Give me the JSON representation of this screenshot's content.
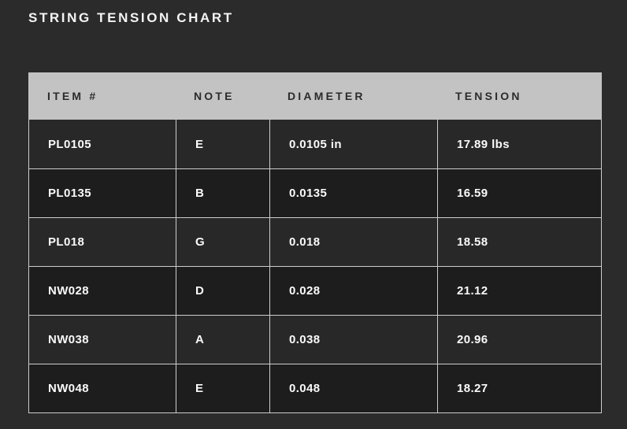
{
  "page": {
    "background": "#2b2b2b"
  },
  "chart_data": {
    "type": "table",
    "title": "STRING TENSION CHART",
    "columns": [
      "ITEM #",
      "NOTE",
      "DIAMETER",
      "TENSION"
    ],
    "rows": [
      [
        "PL0105",
        "E",
        "0.0105 in",
        "17.89 lbs"
      ],
      [
        "PL0135",
        "B",
        "0.0135",
        "16.59"
      ],
      [
        "PL018",
        "G",
        "0.018",
        "18.58"
      ],
      [
        "NW028",
        "D",
        "0.028",
        "21.12"
      ],
      [
        "NW038",
        "A",
        "0.038",
        "20.96"
      ],
      [
        "NW048",
        "E",
        "0.048",
        "18.27"
      ]
    ],
    "units": {
      "diameter": "in",
      "tension": "lbs"
    },
    "layout_hints": {
      "header_background": "#c3c3c3",
      "header_text_color": "#2b2b2b",
      "row_color_odd": "#282828",
      "row_color_even": "#1d1d1d",
      "divider_color": "#cdcdcd",
      "body_text_color": "#fafafa",
      "page_background": "#2b2b2b"
    }
  }
}
